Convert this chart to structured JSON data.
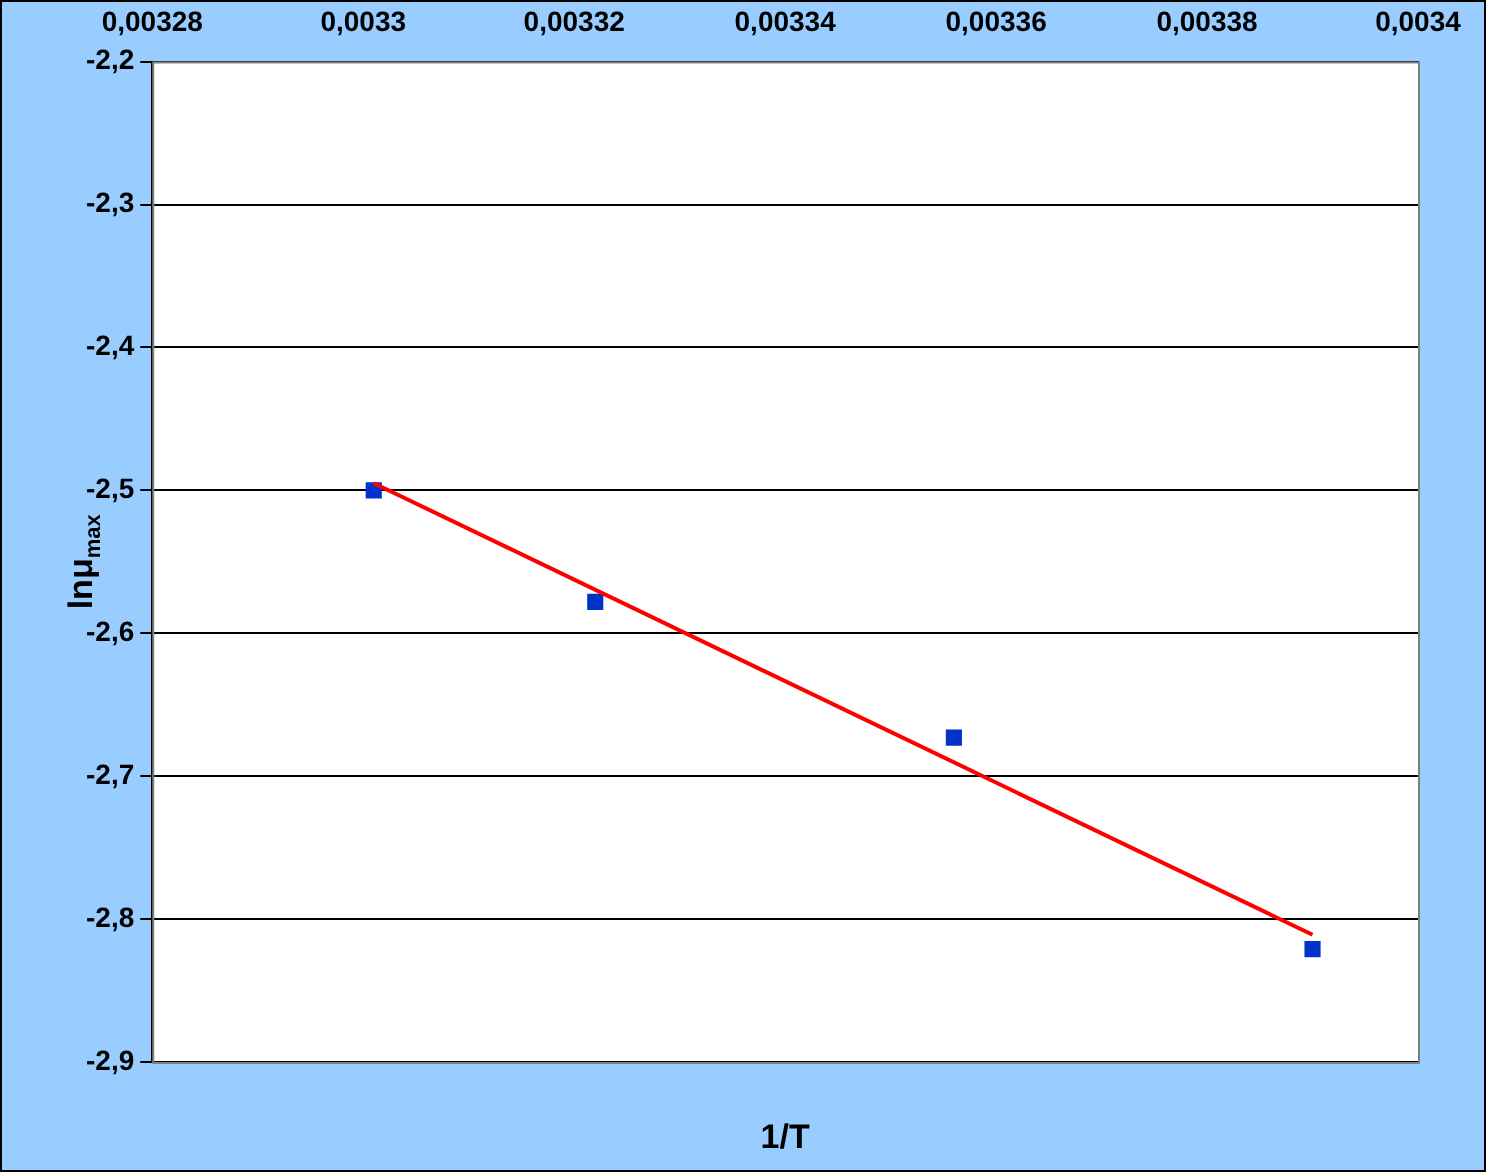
{
  "chart_data": {
    "type": "scatter",
    "ylabel": "lnμ$_{max}$",
    "xlabel": "1/T",
    "xlim": [
      0.00328,
      0.0034
    ],
    "xticks": [
      {
        "value": 0.00328,
        "label": "0,00328"
      },
      {
        "value": 0.0033,
        "label": "0,0033"
      },
      {
        "value": 0.00332,
        "label": "0,00332"
      },
      {
        "value": 0.00334,
        "label": "0,00334"
      },
      {
        "value": 0.00336,
        "label": "0,00336"
      },
      {
        "value": 0.00338,
        "label": "0,00338"
      },
      {
        "value": 0.0034,
        "label": "0,0034"
      }
    ],
    "ylim": [
      -2.9,
      -2.2
    ],
    "yticks": [
      {
        "value": -2.2,
        "label": "-2,2"
      },
      {
        "value": -2.3,
        "label": "-2,3"
      },
      {
        "value": -2.4,
        "label": "-2,4"
      },
      {
        "value": -2.5,
        "label": "-2,5"
      },
      {
        "value": -2.6,
        "label": "-2,6"
      },
      {
        "value": -2.7,
        "label": "-2,7"
      },
      {
        "value": -2.8,
        "label": "-2,8"
      },
      {
        "value": -2.9,
        "label": "-2,9"
      }
    ],
    "grid": "y",
    "marker": "square",
    "series": [
      {
        "type": "scatter",
        "color": "#0033cc",
        "x": [
          0.003301,
          0.003322,
          0.003356,
          0.00339
        ],
        "values": [
          -2.5,
          -2.578,
          -2.673,
          -2.821
        ]
      },
      {
        "type": "line",
        "color": "#ff0000",
        "marker": "none",
        "x": [
          0.003301,
          0.00339
        ],
        "values": [
          -2.495,
          -2.811
        ]
      }
    ]
  }
}
